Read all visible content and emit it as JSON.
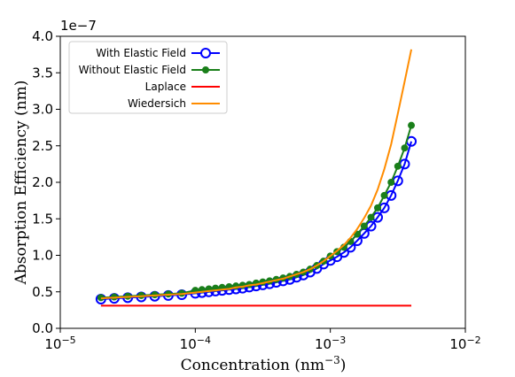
{
  "chart_data": {
    "type": "line",
    "ylabel": "Absorption Efficiency (nm)",
    "xlabel": {
      "text": "Concentration (nm",
      "superscript": "−3",
      "suffix": ")"
    },
    "y_offset_label": "1e−7",
    "xscale": "log",
    "xlim": [
      1e-05,
      0.01
    ],
    "xticks": [
      {
        "value": 1e-05,
        "label": "10",
        "exponent": "−5"
      },
      {
        "value": 0.0001,
        "label": "10",
        "exponent": "−4"
      },
      {
        "value": 0.001,
        "label": "10",
        "exponent": "−3"
      },
      {
        "value": 0.01,
        "label": "10",
        "exponent": "−2"
      }
    ],
    "ylim": [
      0,
      4
    ],
    "yticks": [
      {
        "value": 0,
        "label": "0.0"
      },
      0.5,
      {
        "value": 1,
        "label": "1.0"
      },
      1.5,
      {
        "value": 2,
        "label": "2.0"
      },
      2.5,
      {
        "value": 3,
        "label": "3.0"
      },
      3.5,
      {
        "value": 4,
        "label": "4.0"
      }
    ],
    "legend": "upper left",
    "x": [
      2e-05,
      2.51e-05,
      3.16e-05,
      3.98e-05,
      5.01e-05,
      6.31e-05,
      7.94e-05,
      0.0001,
      0.000112,
      0.000126,
      0.000141,
      0.000158,
      0.000178,
      0.0002,
      0.000224,
      0.000251,
      0.000282,
      0.000316,
      0.000355,
      0.000398,
      0.000447,
      0.000501,
      0.000562,
      0.000631,
      0.000708,
      0.000794,
      0.000891,
      0.001,
      0.00112,
      0.00126,
      0.00141,
      0.00158,
      0.00178,
      0.002,
      0.00224,
      0.00251,
      0.00282,
      0.00316,
      0.00355,
      0.00398
    ],
    "series": [
      {
        "name": "With Elastic Field",
        "color": "#0000ff",
        "marker": "open-circle",
        "values": [
          0.4,
          0.41,
          0.42,
          0.43,
          0.44,
          0.45,
          0.46,
          0.48,
          0.49,
          0.5,
          0.51,
          0.52,
          0.53,
          0.54,
          0.55,
          0.565,
          0.58,
          0.595,
          0.61,
          0.63,
          0.65,
          0.67,
          0.7,
          0.73,
          0.77,
          0.82,
          0.88,
          0.93,
          0.98,
          1.04,
          1.11,
          1.2,
          1.3,
          1.4,
          1.52,
          1.65,
          1.82,
          2.02,
          2.25,
          2.56
        ]
      },
      {
        "name": "Without Elastic Field",
        "color": "#1a7f1a",
        "marker": "dot",
        "values": [
          0.42,
          0.43,
          0.44,
          0.45,
          0.46,
          0.47,
          0.48,
          0.52,
          0.53,
          0.54,
          0.55,
          0.56,
          0.57,
          0.58,
          0.59,
          0.6,
          0.62,
          0.635,
          0.65,
          0.67,
          0.69,
          0.71,
          0.74,
          0.77,
          0.81,
          0.86,
          0.92,
          0.99,
          1.05,
          1.11,
          1.19,
          1.29,
          1.4,
          1.52,
          1.65,
          1.82,
          2.0,
          2.22,
          2.47,
          2.78
        ]
      },
      {
        "name": "Laplace",
        "color": "#ff0000",
        "x": [
          2e-05,
          0.00398
        ],
        "values": [
          0.31,
          0.31
        ]
      },
      {
        "name": "Wiedersich",
        "color": "#ff8c00",
        "values": [
          0.41,
          0.42,
          0.43,
          0.44,
          0.45,
          0.46,
          0.47,
          0.49,
          0.5,
          0.51,
          0.52,
          0.53,
          0.54,
          0.56,
          0.57,
          0.59,
          0.6,
          0.62,
          0.64,
          0.66,
          0.68,
          0.71,
          0.74,
          0.77,
          0.81,
          0.86,
          0.92,
          0.99,
          1.06,
          1.14,
          1.24,
          1.36,
          1.51,
          1.68,
          1.9,
          2.18,
          2.52,
          2.94,
          3.38,
          3.82
        ]
      }
    ]
  }
}
